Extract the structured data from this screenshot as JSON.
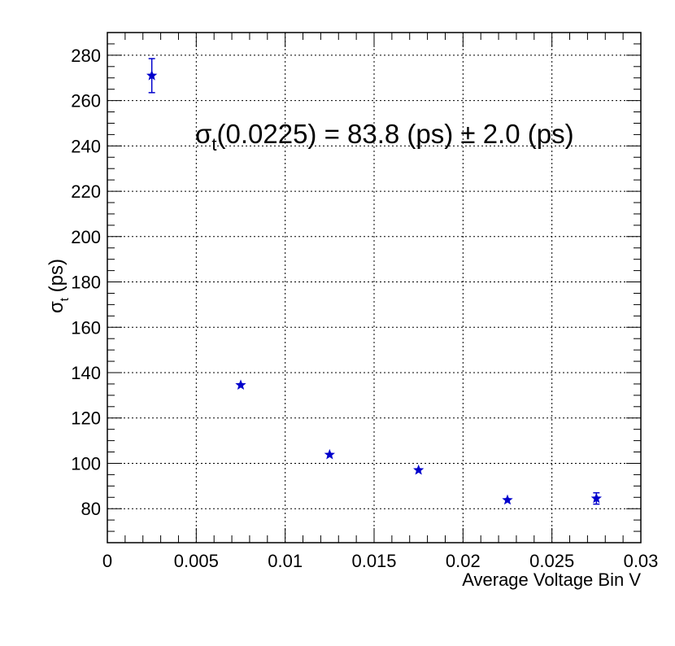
{
  "chart_data": {
    "type": "scatter",
    "title": "",
    "xlabel": "Average Voltage Bin V",
    "ylabel": {
      "symbol": "σ",
      "subscript": "t",
      "unit": " (ps)"
    },
    "xlim": [
      0,
      0.03
    ],
    "ylim": [
      65,
      290
    ],
    "grid": true,
    "x_ticks": [
      {
        "value": 0,
        "label": "0"
      },
      {
        "value": 0.005,
        "label": "0.005"
      },
      {
        "value": 0.01,
        "label": "0.01"
      },
      {
        "value": 0.015,
        "label": "0.015"
      },
      {
        "value": 0.02,
        "label": "0.02"
      },
      {
        "value": 0.025,
        "label": "0.025"
      },
      {
        "value": 0.03,
        "label": "0.03"
      }
    ],
    "y_ticks": [
      {
        "value": 80,
        "label": "80"
      },
      {
        "value": 100,
        "label": "100"
      },
      {
        "value": 120,
        "label": "120"
      },
      {
        "value": 140,
        "label": "140"
      },
      {
        "value": 160,
        "label": "160"
      },
      {
        "value": 180,
        "label": "180"
      },
      {
        "value": 200,
        "label": "200"
      },
      {
        "value": 220,
        "label": "220"
      },
      {
        "value": 240,
        "label": "240"
      },
      {
        "value": 260,
        "label": "260"
      },
      {
        "value": 280,
        "label": "280"
      }
    ],
    "series": [
      {
        "color": "#0000cc",
        "marker": "star",
        "points": [
          {
            "x": 0.0025,
            "y": 271,
            "err": 7.5
          },
          {
            "x": 0.0075,
            "y": 134.5,
            "err": 0
          },
          {
            "x": 0.0125,
            "y": 103.8,
            "err": 0
          },
          {
            "x": 0.0175,
            "y": 97,
            "err": 0
          },
          {
            "x": 0.0225,
            "y": 83.8,
            "err": 0
          },
          {
            "x": 0.0275,
            "y": 84.5,
            "err": 2.5
          }
        ]
      }
    ],
    "annotation": {
      "symbol": "σ",
      "subscript": "t",
      "text": "(0.0225) =  83.8 (ps) ± 2.0 (ps)",
      "anchor": {
        "x": 0.0225,
        "y": 246
      }
    }
  }
}
